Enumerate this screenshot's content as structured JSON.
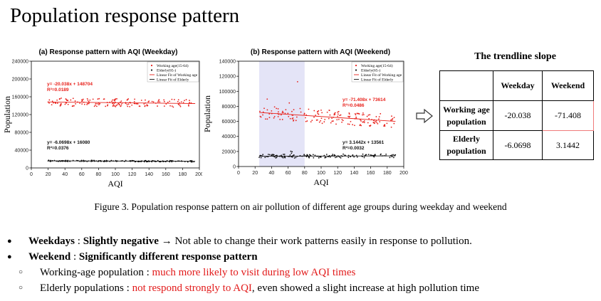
{
  "page_title": "Population response pattern",
  "chart_data": [
    {
      "type": "scatter",
      "title": "(a)  Response pattern with AQI (Weekday)",
      "xlabel": "AQI",
      "ylabel": "Population",
      "xlim": [
        0,
        200
      ],
      "ylim": [
        0,
        240000
      ],
      "xticks": [
        0,
        20,
        40,
        60,
        80,
        100,
        120,
        140,
        160,
        180,
        200
      ],
      "yticks": [
        0,
        40000,
        80000,
        120000,
        160000,
        200000,
        240000
      ],
      "grid": false,
      "legend_position": "top-right",
      "legend": [
        "Working age(15-64)",
        "Elderly(65-)",
        "Linear Fit of Working age",
        "Linear Fit of Elderly"
      ],
      "series": [
        {
          "name": "Working age(15-64)",
          "color": "#e8211b",
          "fit_equation": "y= -20.038x + 148704",
          "r2": "R²=0.0189",
          "slope": -20.038,
          "intercept": 148704,
          "x_range": [
            20,
            195
          ],
          "spread": 9000
        },
        {
          "name": "Elderly(65-)",
          "color": "#111111",
          "fit_equation": "y= -6.0698x + 16080",
          "r2": "R²=0.0376",
          "slope": -6.0698,
          "intercept": 16080,
          "x_range": [
            20,
            195
          ],
          "spread": 1500
        }
      ]
    },
    {
      "type": "scatter",
      "title": "(b)  Response pattern with AQI (Weekend)",
      "xlabel": "AQI",
      "ylabel": "Population",
      "xlim": [
        0,
        200
      ],
      "ylim": [
        0,
        140000
      ],
      "xticks": [
        0,
        20,
        40,
        60,
        80,
        100,
        120,
        140,
        160,
        180,
        200
      ],
      "yticks": [
        0,
        20000,
        40000,
        60000,
        80000,
        100000,
        120000,
        140000
      ],
      "grid": false,
      "highlight_x_range": [
        25,
        80
      ],
      "legend_position": "top-right",
      "legend": [
        "Working age(15-64)",
        "Elderly(65-)",
        "Linear Fit of Working age",
        "Linear Fit of Elderly"
      ],
      "series": [
        {
          "name": "Working age(15-64)",
          "color": "#e8211b",
          "fit_equation": "y= -71.408x + 73614",
          "r2": "R²=0.0486",
          "slope": -71.408,
          "intercept": 73614,
          "x_range": [
            25,
            190
          ],
          "spread": 9000
        },
        {
          "name": "Elderly(65-)",
          "color": "#111111",
          "fit_equation": "y= 3.1442x + 13561",
          "r2": "R²=0.0032",
          "slope": 3.1442,
          "intercept": 13561,
          "x_range": [
            25,
            190
          ],
          "spread": 2500
        }
      ]
    }
  ],
  "trendline_table": {
    "title": "The trendline slope",
    "headers": [
      "",
      "Weekday",
      "Weekend"
    ],
    "rows": [
      {
        "label": "Working age population",
        "weekday": "-20.038",
        "weekend": "-71.408"
      },
      {
        "label": "Elderly population",
        "weekday": "-6.0698",
        "weekend": "3.1442"
      }
    ]
  },
  "caption": "Figure 3. Population response pattern on air pollution of different age groups during weekday and weekend",
  "bullets": {
    "b1_label": "Weekdays",
    "b1_sep": " : ",
    "b1_bold": "Slightly negative",
    "b1_arrow": " → ",
    "b1_text": "Not able to change their work patterns easily in response to pollution.",
    "b2_label": "Weekend",
    "b2_sep": " : ",
    "b2_bold": "Significantly different response pattern",
    "s1_label": "Working-age population : ",
    "s1_red": "much more likely to visit during low AQI times",
    "s2_label": "Elderly populations : ",
    "s2_red": "not respond strongly to AQI",
    "s2_text": ", even showed a slight increase at high pollution time"
  },
  "colors": {
    "working_age": "#e8211b",
    "elderly": "#111111",
    "highlight": "#e4e4f7"
  }
}
